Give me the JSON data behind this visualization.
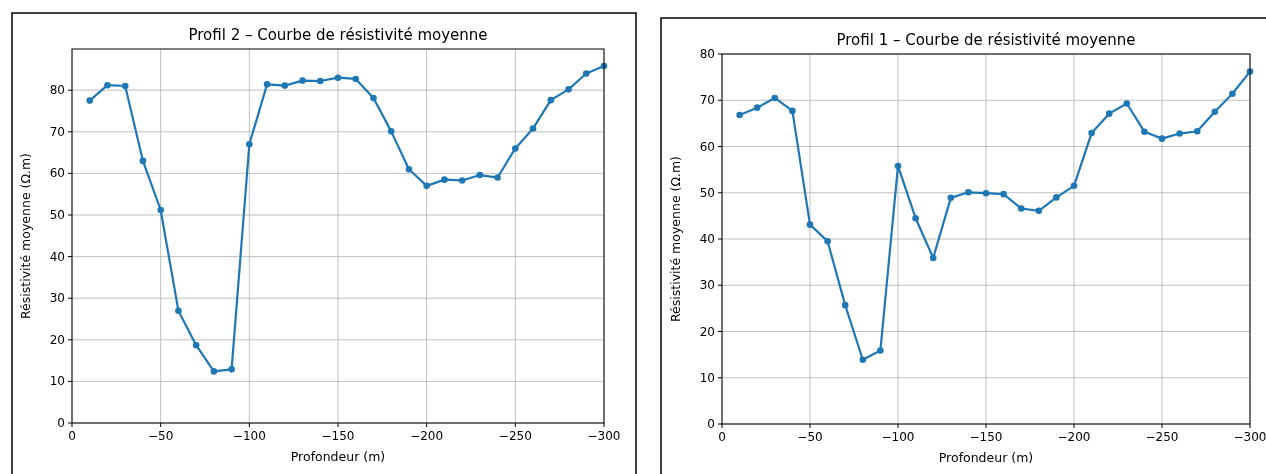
{
  "chart_data": [
    {
      "type": "line",
      "title": "Profil 2 – Courbe de résistivité moyenne",
      "xlabel": "Profondeur (m)",
      "ylabel": "Résistivité moyenne (Ω.m)",
      "x": [
        -10,
        -20,
        -30,
        -40,
        -50,
        -60,
        -70,
        -80,
        -90,
        -100,
        -110,
        -120,
        -130,
        -140,
        -150,
        -160,
        -170,
        -180,
        -190,
        -200,
        -210,
        -220,
        -230,
        -240,
        -250,
        -260,
        -270,
        -280,
        -290,
        -300
      ],
      "series": [
        {
          "color": "#1f77b4",
          "values": [
            77.5,
            81.2,
            81.0,
            63.0,
            51.2,
            27.0,
            18.7,
            12.4,
            12.9,
            67.0,
            81.4,
            81.1,
            82.3,
            82.2,
            83.0,
            82.7,
            78.1,
            70.1,
            61.0,
            57.0,
            58.5,
            58.3,
            59.6,
            59.0,
            66.0,
            70.8,
            77.6,
            80.2,
            84.0,
            85.8
          ]
        }
      ],
      "xlim": [
        0,
        -300
      ],
      "xticks": [
        0,
        {
          "value": -50,
          "label": "−50"
        },
        {
          "value": -100,
          "label": "−100"
        },
        {
          "value": -150,
          "label": "−150"
        },
        {
          "value": -200,
          "label": "−200"
        },
        {
          "value": -250,
          "label": "−250"
        },
        {
          "value": -300,
          "label": "−300"
        }
      ],
      "ylim": [
        0,
        89.9
      ],
      "yticks": [
        0,
        10,
        20,
        30,
        40,
        50,
        60,
        70,
        80
      ],
      "grid": true,
      "marker": "circle",
      "line_style": "solid"
    },
    {
      "type": "line",
      "title": "Profil 1 – Courbe de résistivité moyenne",
      "xlabel": "Profondeur (m)",
      "ylabel": "Résistivité moyenne (Ω.m)",
      "x": [
        -10,
        -20,
        -30,
        -40,
        -50,
        -60,
        -70,
        -80,
        -90,
        -100,
        -110,
        -120,
        -130,
        -140,
        -150,
        -160,
        -170,
        -180,
        -190,
        -200,
        -210,
        -220,
        -230,
        -240,
        -250,
        -260,
        -270,
        -280,
        -290,
        -300
      ],
      "series": [
        {
          "color": "#1f77b4",
          "values": [
            66.8,
            68.4,
            70.5,
            67.7,
            43.1,
            39.5,
            25.7,
            13.9,
            15.9,
            55.8,
            44.5,
            35.9,
            48.9,
            50.1,
            49.9,
            49.7,
            46.6,
            46.1,
            49.0,
            51.5,
            62.9,
            67.1,
            69.3,
            63.2,
            61.7,
            62.8,
            63.3,
            67.5,
            71.4,
            76.2
          ]
        }
      ],
      "xlim": [
        0,
        -300
      ],
      "xticks": [
        0,
        {
          "value": -50,
          "label": "−50"
        },
        {
          "value": -100,
          "label": "−100"
        },
        {
          "value": -150,
          "label": "−150"
        },
        {
          "value": -200,
          "label": "−200"
        },
        {
          "value": -250,
          "label": "−250"
        },
        {
          "value": -300,
          "label": "−300"
        }
      ],
      "ylim": [
        0,
        80
      ],
      "yticks": [
        0,
        10,
        20,
        30,
        40,
        50,
        60,
        70,
        80
      ],
      "grid": true,
      "marker": "circle",
      "line_style": "solid"
    }
  ]
}
